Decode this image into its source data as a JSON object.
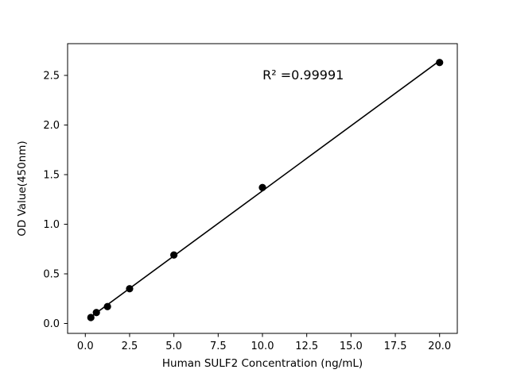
{
  "chart_data": {
    "type": "scatter",
    "title": "",
    "xlabel": "Human SULF2 Concentration (ng/mL)",
    "ylabel": "OD Value(450nm)",
    "points": {
      "x": [
        0.313,
        0.625,
        1.25,
        2.5,
        5,
        10,
        20
      ],
      "y": [
        0.06,
        0.11,
        0.17,
        0.35,
        0.69,
        1.37,
        2.63
      ]
    },
    "fit_line": true,
    "annotation": {
      "text": "R² =0.99991",
      "x": 12.3,
      "y": 2.46
    },
    "xlim": [
      -1,
      21
    ],
    "ylim": [
      -0.1,
      2.82
    ],
    "x_ticks": [
      0.0,
      2.5,
      5.0,
      7.5,
      10.0,
      12.5,
      15.0,
      17.5,
      20.0
    ],
    "x_tick_labels": [
      "0.0",
      "2.5",
      "5.0",
      "7.5",
      "10.0",
      "12.5",
      "15.0",
      "17.5",
      "20.0"
    ],
    "y_ticks": [
      0.0,
      0.5,
      1.0,
      1.5,
      2.0,
      2.5
    ],
    "y_tick_labels": [
      "0.0",
      "0.5",
      "1.0",
      "1.5",
      "2.0",
      "2.5"
    ],
    "grid": "off",
    "legend": "none",
    "marker_color": "#000000",
    "line_color": "#000000",
    "background_color": "#ffffff"
  }
}
